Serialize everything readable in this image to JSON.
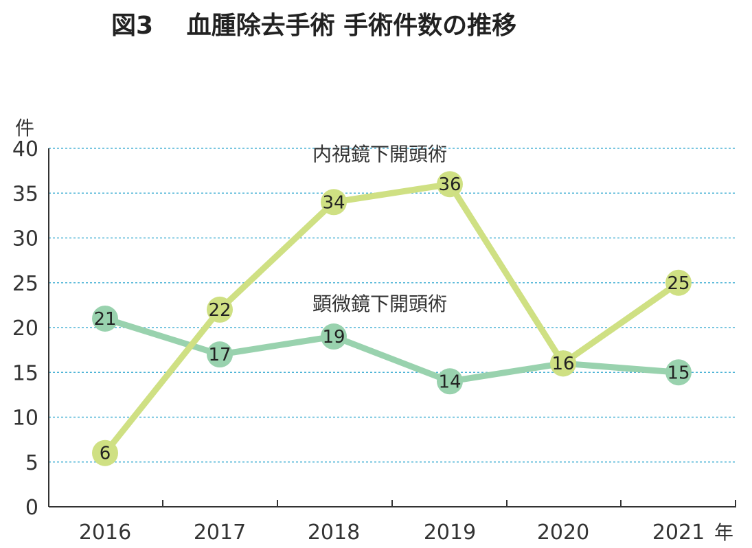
{
  "title": "図3　 血腫除去手術 手術件数の推移",
  "chart_data": {
    "type": "line",
    "title": "図3　 血腫除去手術 手術件数の推移",
    "ylabel": "件",
    "xlabel": "年",
    "ylim": [
      0,
      40
    ],
    "yticks": [
      "0",
      "5",
      "10",
      "15",
      "20",
      "25",
      "30",
      "35",
      "40"
    ],
    "categories": [
      "2016",
      "2017",
      "2018",
      "2019",
      "2020",
      "2021"
    ],
    "grid": true,
    "series": [
      {
        "name": "内視鏡下開頭術",
        "values": [
          6,
          22,
          34,
          36,
          16,
          25
        ],
        "color": "#cfe083",
        "labels": [
          "6",
          "22",
          "34",
          "36",
          "16",
          "25"
        ]
      },
      {
        "name": "顕微鏡下開頭術",
        "values": [
          21,
          17,
          19,
          14,
          16,
          15
        ],
        "color": "#99d2ae",
        "labels": [
          "21",
          "17",
          "19",
          "14",
          "16",
          "15"
        ]
      }
    ]
  }
}
